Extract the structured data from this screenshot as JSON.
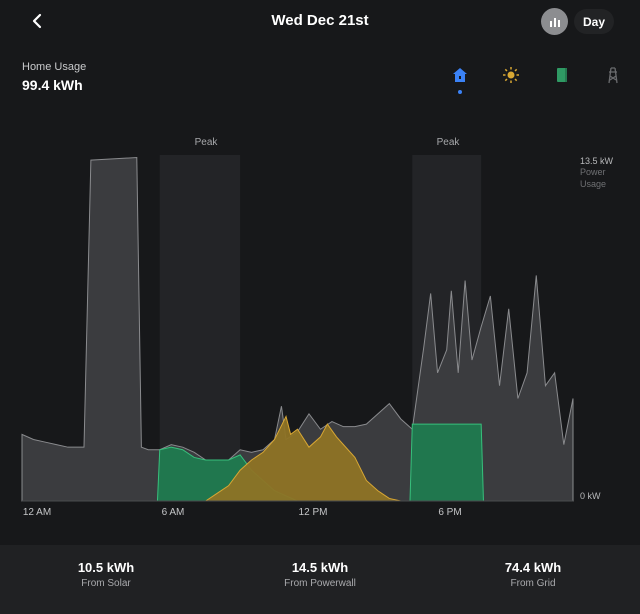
{
  "header": {
    "title": "Wed Dec 21st",
    "period": "Day"
  },
  "summary": {
    "label": "Home Usage",
    "value": "99.4 kWh"
  },
  "sources": [
    {
      "name": "home",
      "icon": "home-icon",
      "color": "#3b82f6",
      "selected": true
    },
    {
      "name": "solar",
      "icon": "sun-icon",
      "color": "#d8a733"
    },
    {
      "name": "powerwall",
      "icon": "battery-icon",
      "color": "#2f9a64"
    },
    {
      "name": "grid",
      "icon": "grid-tower-icon",
      "color": "#6a6b6e"
    }
  ],
  "chart_data": {
    "type": "area",
    "y_unit": "kW",
    "ylim": [
      0,
      13.5
    ],
    "y_top_label": "13.5 kW",
    "y_top_sub": [
      "Power",
      "Usage"
    ],
    "y_bottom_label": "0 kW",
    "x_ticks": [
      "12 AM",
      "6 AM",
      "12 PM",
      "6 PM"
    ],
    "peak_label": "Peak",
    "peak_periods": [
      [
        6,
        9.5
      ],
      [
        17,
        20
      ]
    ],
    "colors": {
      "home": "#3b3c3f",
      "solar": "#8e7325",
      "powerwall": "#1f7a4f"
    },
    "series": [
      {
        "name": "home",
        "points": [
          [
            0,
            2.6
          ],
          [
            0.5,
            2.4
          ],
          [
            1,
            2.3
          ],
          [
            1.5,
            2.2
          ],
          [
            2,
            2.1
          ],
          [
            2.7,
            2.1
          ],
          [
            3,
            13.3
          ],
          [
            5,
            13.4
          ],
          [
            5.2,
            2.1
          ],
          [
            5.5,
            2.0
          ],
          [
            6,
            2.0
          ],
          [
            6.5,
            2.2
          ],
          [
            7,
            2.1
          ],
          [
            7.5,
            1.9
          ],
          [
            8,
            1.6
          ],
          [
            9,
            1.6
          ],
          [
            9.5,
            2.0
          ],
          [
            10,
            1.9
          ],
          [
            10.5,
            2.0
          ],
          [
            11,
            2.4
          ],
          [
            11.3,
            3.7
          ],
          [
            11.5,
            2.4
          ],
          [
            12,
            2.7
          ],
          [
            12.5,
            3.4
          ],
          [
            13,
            2.8
          ],
          [
            13.5,
            3.1
          ],
          [
            14,
            2.9
          ],
          [
            14.5,
            2.9
          ],
          [
            15,
            3.0
          ],
          [
            15.5,
            3.4
          ],
          [
            16,
            3.8
          ],
          [
            16.5,
            3.2
          ],
          [
            17,
            2.8
          ],
          [
            17.5,
            6.0
          ],
          [
            17.8,
            8.1
          ],
          [
            18.1,
            5.0
          ],
          [
            18.5,
            5.9
          ],
          [
            18.7,
            8.2
          ],
          [
            19,
            5.0
          ],
          [
            19.3,
            8.6
          ],
          [
            19.6,
            5.5
          ],
          [
            20,
            6.8
          ],
          [
            20.4,
            8.0
          ],
          [
            20.8,
            4.5
          ],
          [
            21.2,
            7.5
          ],
          [
            21.6,
            4.0
          ],
          [
            22,
            5.0
          ],
          [
            22.4,
            8.8
          ],
          [
            22.8,
            4.5
          ],
          [
            23.2,
            5.0
          ],
          [
            23.6,
            2.2
          ],
          [
            24,
            4.0
          ]
        ]
      },
      {
        "name": "powerwall",
        "points": [
          [
            5.9,
            0
          ],
          [
            6,
            2.0
          ],
          [
            6.5,
            2.1
          ],
          [
            7,
            2.0
          ],
          [
            7.5,
            1.7
          ],
          [
            8,
            1.6
          ],
          [
            9,
            1.6
          ],
          [
            9.5,
            1.8
          ],
          [
            10,
            1.2
          ],
          [
            10.5,
            0.8
          ],
          [
            11,
            0.4
          ],
          [
            11.5,
            0.2
          ],
          [
            12,
            0
          ]
        ]
      },
      {
        "name": "solar",
        "points": [
          [
            8,
            0
          ],
          [
            8.5,
            0.3
          ],
          [
            9,
            0.6
          ],
          [
            9.5,
            1.2
          ],
          [
            10,
            1.6
          ],
          [
            10.5,
            1.9
          ],
          [
            11,
            2.4
          ],
          [
            11.5,
            3.3
          ],
          [
            11.7,
            2.6
          ],
          [
            12,
            2.8
          ],
          [
            12.5,
            2.1
          ],
          [
            13,
            2.5
          ],
          [
            13.3,
            3.0
          ],
          [
            13.7,
            2.5
          ],
          [
            14,
            2.2
          ],
          [
            14.5,
            1.7
          ],
          [
            15,
            0.8
          ],
          [
            15.5,
            0.4
          ],
          [
            16,
            0.1
          ],
          [
            16.5,
            0
          ]
        ]
      },
      {
        "name": "powerwall_evening",
        "points": [
          [
            16.9,
            0
          ],
          [
            17,
            3.0
          ],
          [
            20,
            3.0
          ],
          [
            20.1,
            0
          ]
        ]
      }
    ]
  },
  "totals": [
    {
      "value": "10.5 kWh",
      "label": "From Solar"
    },
    {
      "value": "14.5 kWh",
      "label": "From Powerwall"
    },
    {
      "value": "74.4 kWh",
      "label": "From Grid"
    }
  ]
}
